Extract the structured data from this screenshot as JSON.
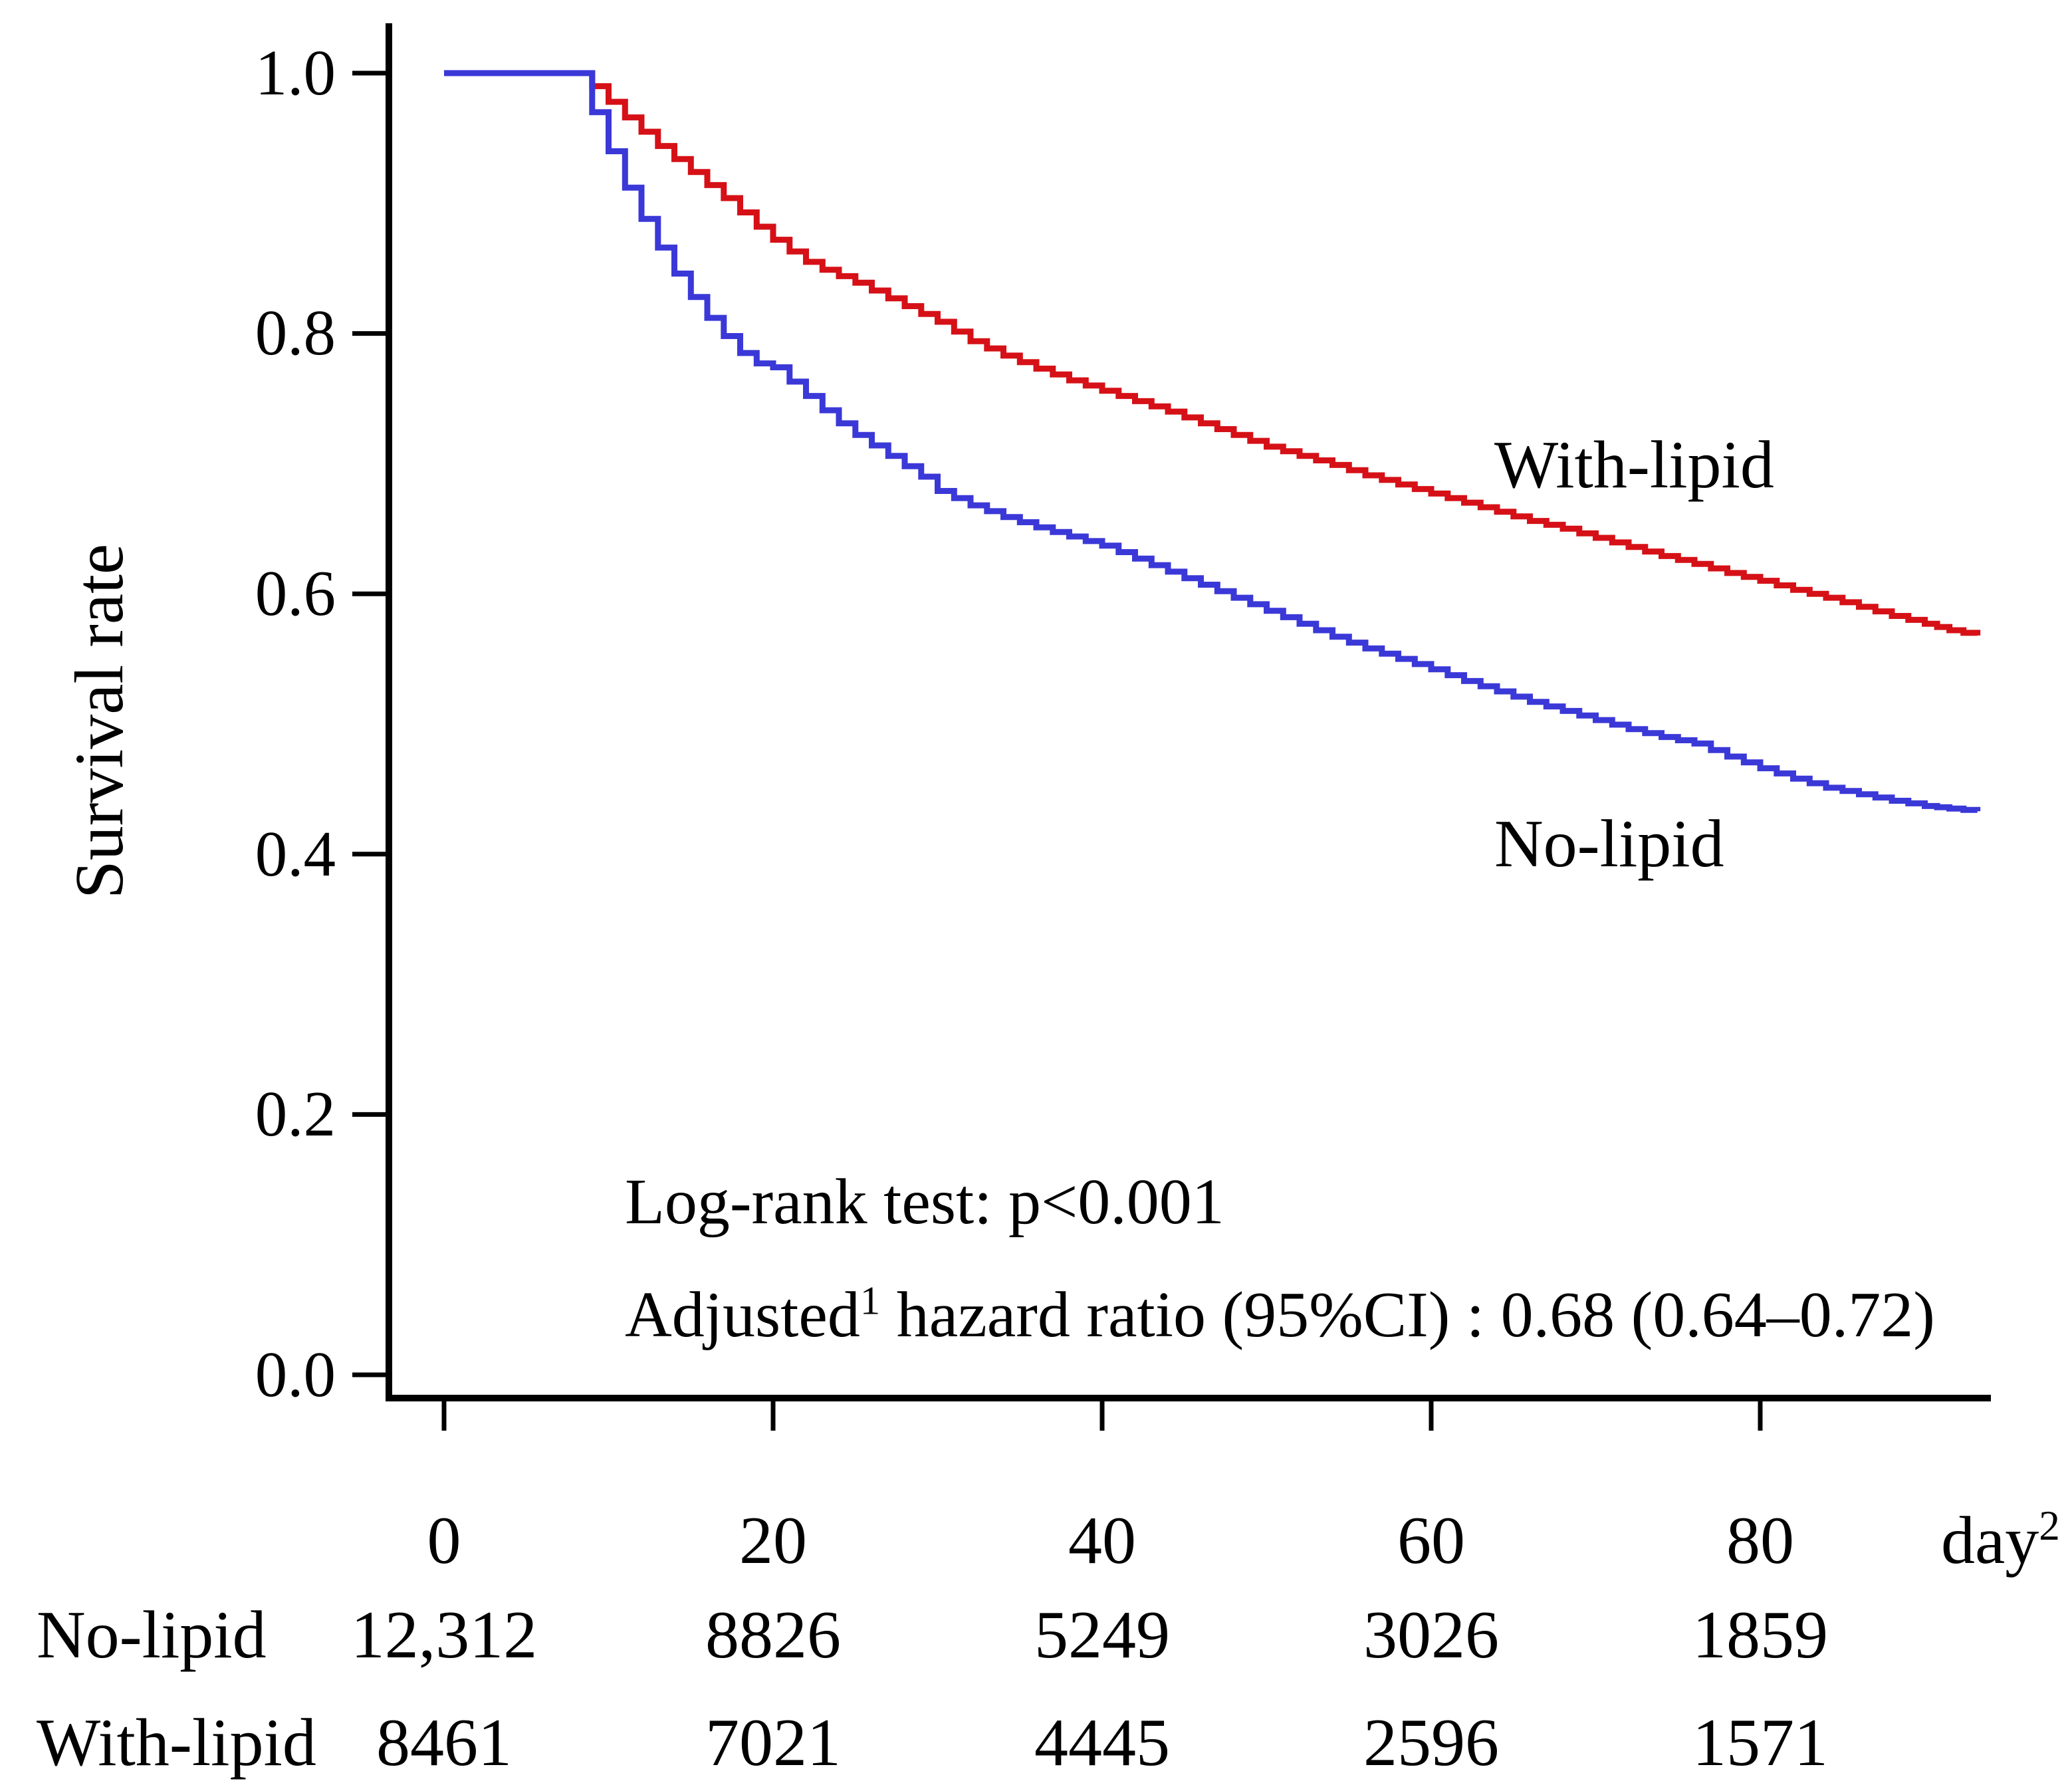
{
  "chart_data": {
    "type": "line",
    "subtype": "kaplan-meier-step",
    "title": "",
    "xlabel": "day",
    "xlabel_sup": "2",
    "ylabel": "Survival rate",
    "xlim": [
      0,
      95
    ],
    "ylim": [
      0.0,
      1.0
    ],
    "grid": false,
    "legend_position": "inline-labels-on-plot",
    "x_ticks": [
      0,
      20,
      40,
      60,
      80
    ],
    "x_tick_labels": [
      "0",
      "20",
      "40",
      "60",
      "80"
    ],
    "y_ticks": [
      1.0,
      0.8,
      0.6,
      0.4,
      0.2,
      0.0
    ],
    "y_tick_labels": [
      "1.0",
      "0.8",
      "0.6",
      "0.4",
      "0.2",
      "0.0"
    ],
    "series": [
      {
        "name": "With-lipid",
        "color": "#d51117",
        "step": true,
        "points": [
          [
            0,
            1.0
          ],
          [
            8.2,
            1.0
          ],
          [
            9,
            0.99
          ],
          [
            10,
            0.978
          ],
          [
            11,
            0.966
          ],
          [
            12,
            0.955
          ],
          [
            13,
            0.944
          ],
          [
            14,
            0.934
          ],
          [
            15,
            0.924
          ],
          [
            16,
            0.914
          ],
          [
            17,
            0.904
          ],
          [
            18,
            0.893
          ],
          [
            19,
            0.882
          ],
          [
            20,
            0.872
          ],
          [
            21,
            0.863
          ],
          [
            22,
            0.855
          ],
          [
            23,
            0.849
          ],
          [
            24,
            0.844
          ],
          [
            25,
            0.839
          ],
          [
            26,
            0.833
          ],
          [
            27,
            0.827
          ],
          [
            28,
            0.821
          ],
          [
            29,
            0.815
          ],
          [
            30,
            0.809
          ],
          [
            32,
            0.794
          ],
          [
            34,
            0.783
          ],
          [
            36,
            0.773
          ],
          [
            38,
            0.764
          ],
          [
            40,
            0.756
          ],
          [
            42,
            0.748
          ],
          [
            44,
            0.74
          ],
          [
            46,
            0.731
          ],
          [
            48,
            0.722
          ],
          [
            50,
            0.713
          ],
          [
            52,
            0.706
          ],
          [
            54,
            0.699
          ],
          [
            56,
            0.691
          ],
          [
            58,
            0.684
          ],
          [
            60,
            0.677
          ],
          [
            62,
            0.67
          ],
          [
            64,
            0.663
          ],
          [
            66,
            0.656
          ],
          [
            68,
            0.65
          ],
          [
            70,
            0.643
          ],
          [
            72,
            0.636
          ],
          [
            74,
            0.629
          ],
          [
            76,
            0.623
          ],
          [
            78,
            0.616
          ],
          [
            80,
            0.61
          ],
          [
            82,
            0.603
          ],
          [
            84,
            0.597
          ],
          [
            86,
            0.59
          ],
          [
            88,
            0.583
          ],
          [
            90,
            0.577
          ],
          [
            91.5,
            0.572
          ],
          [
            93.2,
            0.568
          ]
        ]
      },
      {
        "name": "No-lipid",
        "color": "#3b38d8",
        "step": true,
        "points": [
          [
            0,
            1.0
          ],
          [
            8.2,
            1.0
          ],
          [
            9,
            0.97
          ],
          [
            10,
            0.94
          ],
          [
            11,
            0.912
          ],
          [
            12,
            0.888
          ],
          [
            13,
            0.866
          ],
          [
            14,
            0.846
          ],
          [
            15,
            0.828
          ],
          [
            16,
            0.812
          ],
          [
            17,
            0.798
          ],
          [
            18,
            0.785
          ],
          [
            19,
            0.777
          ],
          [
            20,
            0.774
          ],
          [
            21,
            0.763
          ],
          [
            22,
            0.752
          ],
          [
            23,
            0.741
          ],
          [
            24,
            0.731
          ],
          [
            25,
            0.722
          ],
          [
            26,
            0.714
          ],
          [
            27,
            0.706
          ],
          [
            28,
            0.698
          ],
          [
            29,
            0.69
          ],
          [
            30,
            0.679
          ],
          [
            32,
            0.668
          ],
          [
            34,
            0.659
          ],
          [
            36,
            0.651
          ],
          [
            38,
            0.644
          ],
          [
            40,
            0.637
          ],
          [
            42,
            0.627
          ],
          [
            44,
            0.617
          ],
          [
            46,
            0.607
          ],
          [
            48,
            0.597
          ],
          [
            50,
            0.587
          ],
          [
            52,
            0.577
          ],
          [
            54,
            0.567
          ],
          [
            56,
            0.558
          ],
          [
            58,
            0.55
          ],
          [
            60,
            0.542
          ],
          [
            62,
            0.533
          ],
          [
            64,
            0.525
          ],
          [
            66,
            0.517
          ],
          [
            68,
            0.51
          ],
          [
            70,
            0.503
          ],
          [
            72,
            0.496
          ],
          [
            74,
            0.49
          ],
          [
            76,
            0.485
          ],
          [
            78,
            0.475
          ],
          [
            80,
            0.466
          ],
          [
            82,
            0.458
          ],
          [
            84,
            0.451
          ],
          [
            86,
            0.446
          ],
          [
            88,
            0.441
          ],
          [
            90,
            0.437
          ],
          [
            91.5,
            0.435
          ],
          [
            93.2,
            0.433
          ]
        ]
      }
    ],
    "curve_labels": {
      "with_lipid": "With-lipid",
      "no_lipid": "No-lipid"
    }
  },
  "annotations": {
    "logrank": "Log-rank test:  p<0.001",
    "adjusted_prefix": "Adjusted",
    "adjusted_sup": "1",
    "adjusted_rest": " hazard ratio (95%CI) :  0.68 (0.64–0.72)"
  },
  "risk_table": {
    "rows": [
      {
        "label": "No-lipid",
        "counts": [
          "12,312",
          "8826",
          "5249",
          "3026",
          "1859"
        ]
      },
      {
        "label": "With-lipid",
        "counts": [
          "8461",
          "7021",
          "4445",
          "2596",
          "1571"
        ]
      }
    ]
  }
}
